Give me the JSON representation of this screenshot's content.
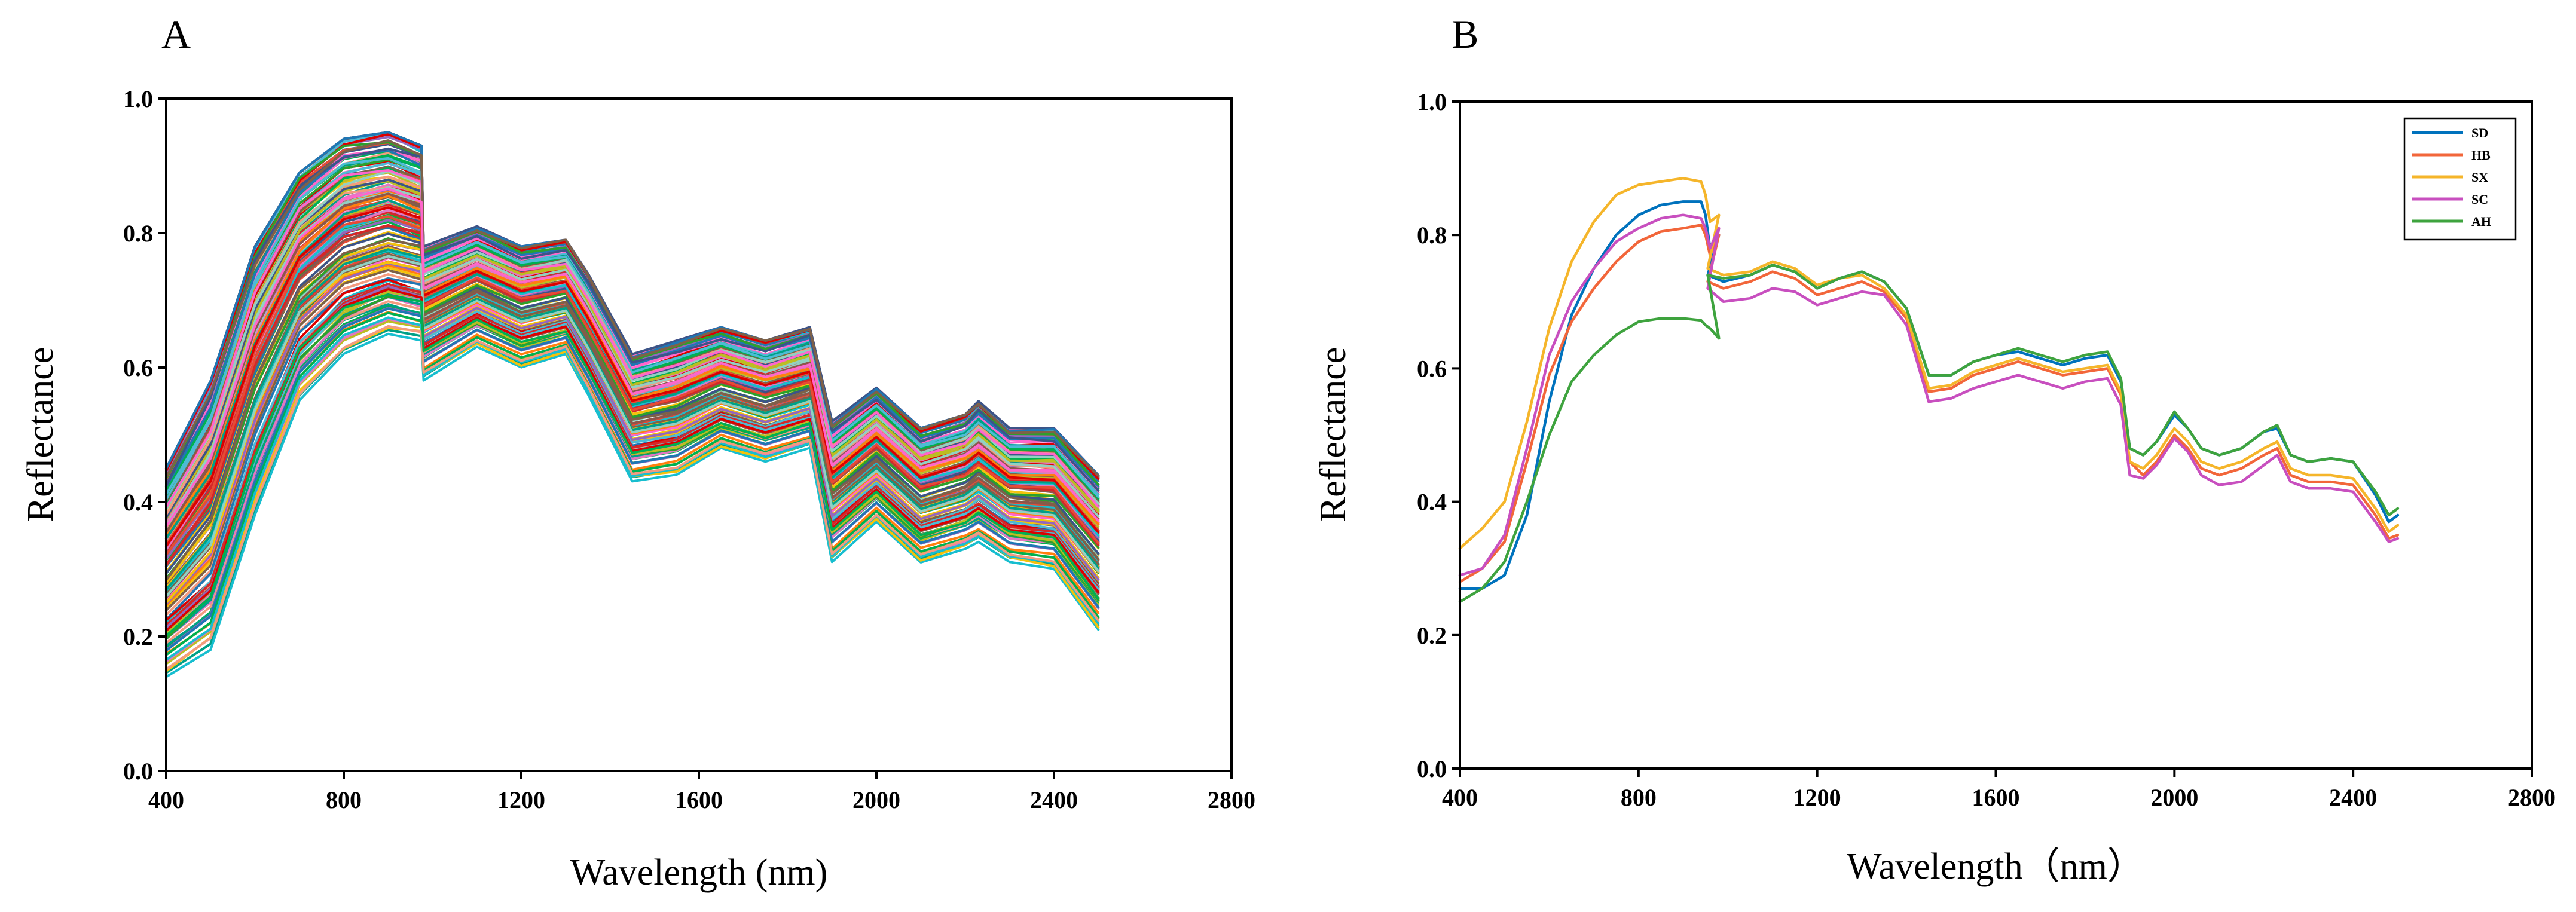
{
  "chart_data": [
    {
      "panel": "A",
      "type": "line",
      "title": "A",
      "xlabel": "Wavelength (nm)",
      "ylabel": "Reflectance",
      "xlim": [
        400,
        2800
      ],
      "ylim": [
        0.0,
        1.0
      ],
      "xticks": [
        400,
        800,
        1200,
        1600,
        2000,
        2400,
        2800
      ],
      "xtick_labels": [
        "400",
        "800",
        "1200",
        "1600",
        "2000",
        "2400",
        "2800"
      ],
      "yticks": [
        0.0,
        0.2,
        0.4,
        0.6,
        0.8,
        1.0
      ],
      "ytick_labels": [
        "0.0",
        "0.2",
        "0.4",
        "0.6",
        "0.8",
        "1.0"
      ],
      "grid": false,
      "n_spectra": 160,
      "envelope": {
        "x": [
          400,
          500,
          600,
          700,
          800,
          900,
          975,
          980,
          1100,
          1200,
          1300,
          1350,
          1450,
          1550,
          1650,
          1750,
          1850,
          1900,
          2000,
          2100,
          2200,
          2230,
          2300,
          2400,
          2500
        ],
        "upper": [
          0.45,
          0.58,
          0.78,
          0.89,
          0.94,
          0.95,
          0.93,
          0.78,
          0.81,
          0.78,
          0.79,
          0.74,
          0.62,
          0.64,
          0.66,
          0.64,
          0.66,
          0.52,
          0.57,
          0.51,
          0.53,
          0.55,
          0.51,
          0.51,
          0.44
        ],
        "lower": [
          0.14,
          0.18,
          0.38,
          0.55,
          0.62,
          0.65,
          0.64,
          0.58,
          0.63,
          0.6,
          0.62,
          0.56,
          0.43,
          0.44,
          0.48,
          0.46,
          0.48,
          0.31,
          0.37,
          0.31,
          0.33,
          0.34,
          0.31,
          0.3,
          0.21
        ]
      },
      "palette": [
        "#1f77b4",
        "#ff7f0e",
        "#2ca02c",
        "#d62728",
        "#9467bd",
        "#8c564b",
        "#e377c2",
        "#bcbd22",
        "#17becf",
        "#f4c20d",
        "#00a087",
        "#e64b35",
        "#4dbbd5",
        "#3c5488",
        "#f39b7f",
        "#7e6148",
        "#91d1c2",
        "#dc0000",
        "#00b050",
        "#ff66cc"
      ]
    },
    {
      "panel": "B",
      "type": "line",
      "title": "B",
      "xlabel": "Wavelength（nm）",
      "ylabel": "Reflectance",
      "xlim": [
        400,
        2800
      ],
      "ylim": [
        0.0,
        1.0
      ],
      "xticks": [
        400,
        800,
        1200,
        1600,
        2000,
        2400,
        2800
      ],
      "xtick_labels": [
        "400",
        "800",
        "1200",
        "1600",
        "2000",
        "2400",
        "2800"
      ],
      "yticks": [
        0.0,
        0.2,
        0.4,
        0.6,
        0.8,
        1.0
      ],
      "ytick_labels": [
        "0.0",
        "0.2",
        "0.4",
        "0.6",
        "0.8",
        "1.0"
      ],
      "grid": false,
      "legend_position": "top-right",
      "series": [
        {
          "name": "SD",
          "color": "#0072bd",
          "x": [
            400,
            450,
            500,
            550,
            600,
            650,
            700,
            750,
            800,
            850,
            900,
            940,
            950,
            960,
            980,
            955,
            990,
            1050,
            1100,
            1150,
            1200,
            1250,
            1300,
            1350,
            1400,
            1450,
            1500,
            1550,
            1600,
            1650,
            1700,
            1750,
            1800,
            1850,
            1880,
            1900,
            1930,
            1960,
            2000,
            2030,
            2060,
            2100,
            2150,
            2200,
            2230,
            2260,
            2300,
            2350,
            2400,
            2450,
            2480,
            2500
          ],
          "y": [
            0.27,
            0.27,
            0.29,
            0.38,
            0.55,
            0.68,
            0.75,
            0.8,
            0.83,
            0.845,
            0.85,
            0.85,
            0.83,
            0.78,
            0.8,
            0.74,
            0.73,
            0.74,
            0.755,
            0.745,
            0.72,
            0.735,
            0.745,
            0.73,
            0.69,
            0.59,
            0.59,
            0.61,
            0.62,
            0.625,
            0.615,
            0.605,
            0.615,
            0.62,
            0.58,
            0.48,
            0.47,
            0.49,
            0.53,
            0.51,
            0.48,
            0.47,
            0.48,
            0.505,
            0.51,
            0.47,
            0.46,
            0.465,
            0.46,
            0.41,
            0.37,
            0.38
          ]
        },
        {
          "name": "HB",
          "color": "#f2663a",
          "x": [
            400,
            450,
            500,
            550,
            600,
            650,
            700,
            750,
            800,
            850,
            900,
            940,
            950,
            960,
            980,
            955,
            990,
            1050,
            1100,
            1150,
            1200,
            1250,
            1300,
            1350,
            1400,
            1450,
            1500,
            1550,
            1600,
            1650,
            1700,
            1750,
            1800,
            1850,
            1880,
            1900,
            1930,
            1960,
            2000,
            2030,
            2060,
            2100,
            2150,
            2200,
            2230,
            2260,
            2300,
            2350,
            2400,
            2450,
            2480,
            2500
          ],
          "y": [
            0.28,
            0.3,
            0.34,
            0.46,
            0.59,
            0.67,
            0.72,
            0.76,
            0.79,
            0.805,
            0.81,
            0.815,
            0.8,
            0.77,
            0.8,
            0.73,
            0.72,
            0.73,
            0.745,
            0.735,
            0.71,
            0.72,
            0.73,
            0.715,
            0.675,
            0.565,
            0.57,
            0.59,
            0.6,
            0.61,
            0.6,
            0.59,
            0.595,
            0.6,
            0.56,
            0.46,
            0.44,
            0.46,
            0.5,
            0.48,
            0.45,
            0.44,
            0.45,
            0.47,
            0.48,
            0.44,
            0.43,
            0.43,
            0.425,
            0.38,
            0.345,
            0.35
          ]
        },
        {
          "name": "SX",
          "color": "#f5b52a",
          "x": [
            400,
            450,
            500,
            550,
            600,
            650,
            700,
            750,
            800,
            850,
            900,
            940,
            950,
            960,
            980,
            955,
            990,
            1050,
            1100,
            1150,
            1200,
            1250,
            1300,
            1350,
            1400,
            1450,
            1500,
            1550,
            1600,
            1650,
            1700,
            1750,
            1800,
            1850,
            1880,
            1900,
            1930,
            1960,
            2000,
            2030,
            2060,
            2100,
            2150,
            2200,
            2230,
            2260,
            2300,
            2350,
            2400,
            2450,
            2480,
            2500
          ],
          "y": [
            0.33,
            0.36,
            0.4,
            0.52,
            0.66,
            0.76,
            0.82,
            0.86,
            0.875,
            0.88,
            0.885,
            0.88,
            0.86,
            0.82,
            0.83,
            0.75,
            0.74,
            0.745,
            0.76,
            0.75,
            0.725,
            0.735,
            0.74,
            0.72,
            0.68,
            0.57,
            0.575,
            0.595,
            0.605,
            0.615,
            0.605,
            0.595,
            0.6,
            0.605,
            0.565,
            0.46,
            0.45,
            0.47,
            0.51,
            0.49,
            0.46,
            0.45,
            0.46,
            0.48,
            0.49,
            0.45,
            0.44,
            0.44,
            0.435,
            0.39,
            0.355,
            0.365
          ]
        },
        {
          "name": "SC",
          "color": "#c84fbf",
          "x": [
            400,
            450,
            500,
            550,
            600,
            650,
            700,
            750,
            800,
            850,
            900,
            940,
            950,
            960,
            980,
            955,
            990,
            1050,
            1100,
            1150,
            1200,
            1250,
            1300,
            1350,
            1400,
            1450,
            1500,
            1550,
            1600,
            1650,
            1700,
            1750,
            1800,
            1850,
            1880,
            1900,
            1930,
            1960,
            2000,
            2030,
            2060,
            2100,
            2150,
            2200,
            2230,
            2260,
            2300,
            2350,
            2400,
            2450,
            2480,
            2500
          ],
          "y": [
            0.29,
            0.3,
            0.35,
            0.48,
            0.62,
            0.7,
            0.75,
            0.79,
            0.81,
            0.825,
            0.83,
            0.825,
            0.81,
            0.78,
            0.81,
            0.72,
            0.7,
            0.705,
            0.72,
            0.715,
            0.695,
            0.705,
            0.715,
            0.71,
            0.665,
            0.55,
            0.555,
            0.57,
            0.58,
            0.59,
            0.58,
            0.57,
            0.58,
            0.585,
            0.545,
            0.44,
            0.435,
            0.455,
            0.495,
            0.475,
            0.44,
            0.425,
            0.43,
            0.455,
            0.47,
            0.43,
            0.42,
            0.42,
            0.415,
            0.37,
            0.34,
            0.345
          ]
        },
        {
          "name": "AH",
          "color": "#3ea33e",
          "x": [
            400,
            450,
            500,
            550,
            600,
            650,
            700,
            750,
            800,
            850,
            900,
            940,
            950,
            960,
            980,
            955,
            990,
            1050,
            1100,
            1150,
            1200,
            1250,
            1300,
            1350,
            1400,
            1450,
            1500,
            1550,
            1600,
            1650,
            1700,
            1750,
            1800,
            1850,
            1880,
            1900,
            1930,
            1960,
            2000,
            2030,
            2060,
            2100,
            2150,
            2200,
            2230,
            2260,
            2300,
            2350,
            2400,
            2450,
            2480,
            2500
          ],
          "y": [
            0.25,
            0.27,
            0.31,
            0.4,
            0.5,
            0.58,
            0.62,
            0.65,
            0.67,
            0.675,
            0.675,
            0.672,
            0.665,
            0.66,
            0.645,
            0.74,
            0.735,
            0.74,
            0.755,
            0.745,
            0.72,
            0.735,
            0.745,
            0.73,
            0.69,
            0.59,
            0.59,
            0.61,
            0.62,
            0.63,
            0.62,
            0.61,
            0.62,
            0.625,
            0.585,
            0.48,
            0.47,
            0.49,
            0.535,
            0.51,
            0.48,
            0.47,
            0.48,
            0.505,
            0.515,
            0.47,
            0.46,
            0.465,
            0.46,
            0.415,
            0.38,
            0.39
          ]
        }
      ]
    }
  ]
}
